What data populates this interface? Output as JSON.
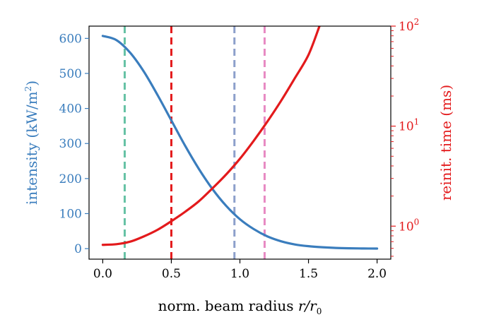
{
  "chart_data": {
    "type": "line",
    "xlabel": "norm. beam radius r/r",
    "xlabel_parts": {
      "prefix": "norm. beam radius ",
      "var": "r/r",
      "sub": "0"
    },
    "ylabel_left": {
      "prefix": "intensity (kW/m",
      "sup": "2",
      "suffix": ")"
    },
    "ylabel_right": "reinit. time (ms)",
    "xlim": [
      -0.1,
      2.1
    ],
    "ylim_left": [
      -30,
      635
    ],
    "ylim_right_log10": [
      -0.33,
      2.0
    ],
    "x_ticks": [
      0.0,
      0.5,
      1.0,
      1.5,
      2.0
    ],
    "x_tick_labels": [
      "0.0",
      "0.5",
      "1.0",
      "1.5",
      "2.0"
    ],
    "y_left_ticks": [
      0,
      100,
      200,
      300,
      400,
      500,
      600
    ],
    "y_left_tick_labels": [
      "0",
      "100",
      "200",
      "300",
      "400",
      "500",
      "600"
    ],
    "y_right_ticks": [
      {
        "base": "10",
        "exp": "0",
        "log10": 0
      },
      {
        "base": "10",
        "exp": "1",
        "log10": 1
      },
      {
        "base": "10",
        "exp": "2",
        "log10": 2
      }
    ],
    "series": [
      {
        "name": "intensity",
        "axis": "left",
        "color": "#3a7dbd",
        "x": [
          0.0,
          0.1,
          0.2,
          0.3,
          0.4,
          0.5,
          0.6,
          0.7,
          0.8,
          0.9,
          1.0,
          1.1,
          1.2,
          1.3,
          1.4,
          1.5,
          1.6,
          1.7,
          1.8,
          1.9,
          2.0
        ],
        "y": [
          607,
          595,
          559,
          505,
          438,
          366,
          294,
          228,
          170,
          122,
          84,
          56,
          35,
          21,
          12,
          7,
          4,
          2,
          1,
          0.5,
          0.2
        ]
      },
      {
        "name": "reinit. time",
        "axis": "right",
        "color": "#e31a1c",
        "x": [
          0.0,
          0.1,
          0.2,
          0.3,
          0.4,
          0.5,
          0.6,
          0.7,
          0.8,
          0.9,
          1.0,
          1.1,
          1.2,
          1.3,
          1.4,
          1.5,
          1.58
        ],
        "y": [
          0.65,
          0.66,
          0.7,
          0.79,
          0.92,
          1.12,
          1.39,
          1.77,
          2.39,
          3.29,
          4.72,
          7.12,
          11.1,
          17.9,
          30.1,
          51.6,
          100
        ]
      }
    ],
    "vlines": [
      {
        "x": 0.16,
        "color": "#66c2a5"
      },
      {
        "x": 0.5,
        "color": "#e31a1c"
      },
      {
        "x": 0.96,
        "color": "#8da0cb"
      },
      {
        "x": 1.18,
        "color": "#e78ac3"
      }
    ],
    "colors": {
      "left_axis": "#3a7dbd",
      "right_axis": "#e31a1c",
      "frame": "#000000"
    }
  }
}
